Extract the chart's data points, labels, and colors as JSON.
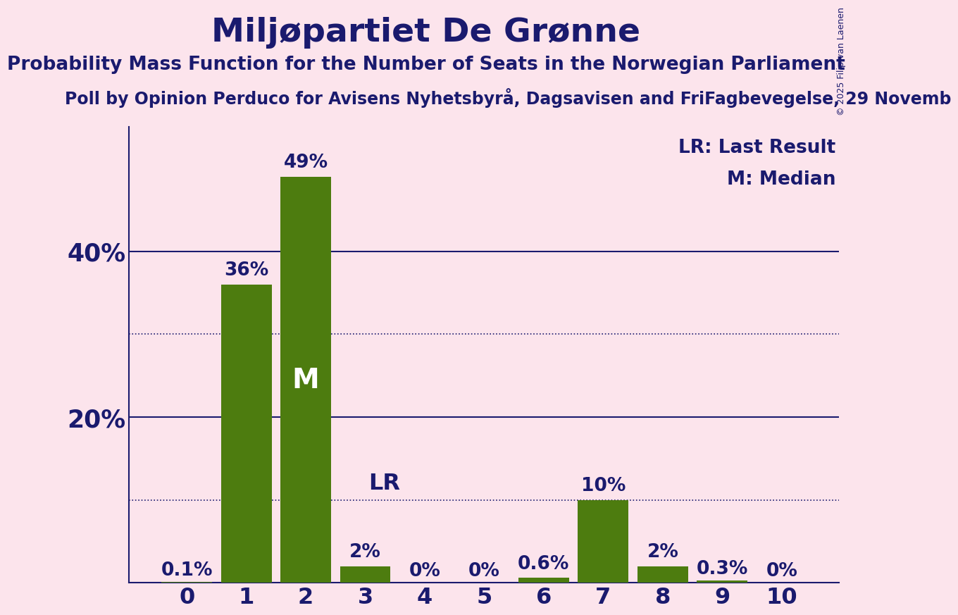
{
  "title": "Miljøpartiet De Grønne",
  "subtitle": "Probability Mass Function for the Number of Seats in the Norwegian Parliament",
  "poll_text": "Poll by Opinion Perduco for Avisens Nyhetsbyrå, Dagsavisen and FriFagbevegelse, 29 Novemb",
  "copyright": "© 2025 Filip van Laenen",
  "categories": [
    0,
    1,
    2,
    3,
    4,
    5,
    6,
    7,
    8,
    9,
    10
  ],
  "values": [
    0.001,
    0.36,
    0.49,
    0.02,
    0.0,
    0.0,
    0.006,
    0.1,
    0.02,
    0.003,
    0.0
  ],
  "value_labels": [
    "0.1%",
    "36%",
    "49%",
    "2%",
    "0%",
    "0%",
    "0.6%",
    "10%",
    "2%",
    "0.3%",
    "0%"
  ],
  "bar_color": "#4d7c0f",
  "background_color": "#fce4ec",
  "text_color": "#1a1a6e",
  "median_seat": 2,
  "lr_seat": 3,
  "legend_lr": "LR: Last Result",
  "legend_m": "M: Median",
  "ylim": [
    0,
    0.55
  ],
  "solid_gridlines": [
    0.2,
    0.4
  ],
  "dotted_gridlines": [
    0.1,
    0.3
  ],
  "title_fontsize": 34,
  "subtitle_fontsize": 19,
  "poll_fontsize": 17,
  "bar_label_fontsize": 19,
  "axis_tick_fontsize": 23,
  "ytick_fontsize": 25,
  "legend_fontsize": 19,
  "median_label_fontsize": 28,
  "lr_label_fontsize": 23,
  "copyright_fontsize": 9
}
